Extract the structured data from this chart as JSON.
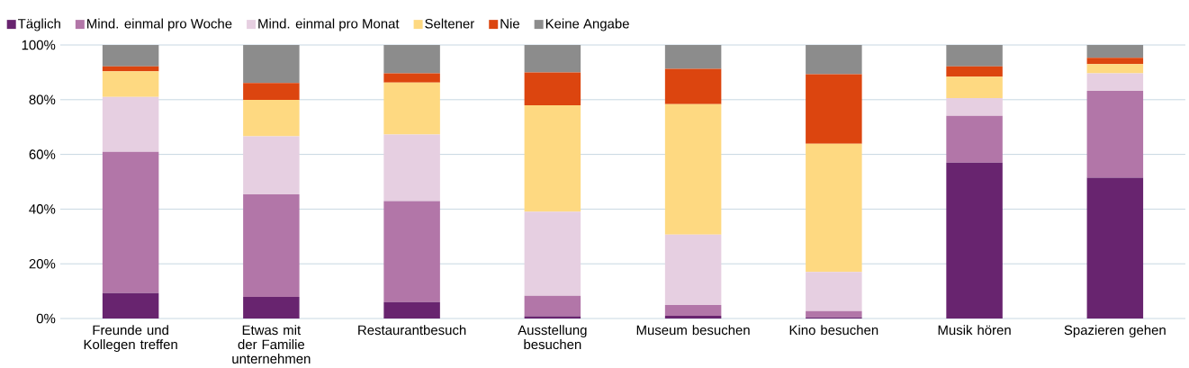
{
  "chart_data": {
    "type": "bar",
    "stacked": true,
    "grid": "y",
    "legend": "top",
    "categories": [
      "Freunde und Kollegen treffen",
      "Etwas mit der Familie unternehmen",
      "Restaurantbesuch",
      "Ausstellung besuchen",
      "Museum besuchen",
      "Kino besuchen",
      "Musik hören",
      "Spazieren gehen"
    ],
    "series": [
      {
        "name": "Täglich",
        "color": "#68246f",
        "values": [
          9.3,
          7.9,
          6.0,
          0.8,
          1.0,
          0.4,
          57.0,
          51.5
        ]
      },
      {
        "name": "Mind. einmal pro Woche",
        "color": "#b276a8",
        "values": [
          51.6,
          37.5,
          36.9,
          7.5,
          3.9,
          2.3,
          17.1,
          31.7
        ]
      },
      {
        "name": "Mind. einmal pro Monat",
        "color": "#e6cfe1",
        "values": [
          20.1,
          21.2,
          24.4,
          30.8,
          25.8,
          14.3,
          6.5,
          6.4
        ]
      },
      {
        "name": "Seltener",
        "color": "#fed981",
        "values": [
          9.4,
          13.3,
          19.0,
          38.9,
          47.7,
          46.9,
          7.8,
          3.4
        ]
      },
      {
        "name": "Nie",
        "color": "#dc450f",
        "values": [
          1.8,
          6.2,
          3.3,
          12.0,
          12.9,
          25.4,
          3.8,
          2.3
        ]
      },
      {
        "name": "Keine Angabe",
        "color": "#8c8c8c",
        "values": [
          7.8,
          13.9,
          10.4,
          10.0,
          8.7,
          10.7,
          7.8,
          4.7
        ]
      }
    ],
    "ylim": [
      0,
      100
    ],
    "yticks": [
      {
        "value": 0,
        "label": "0%"
      },
      {
        "value": 20,
        "label": "20%"
      },
      {
        "value": 40,
        "label": "40%"
      },
      {
        "value": 60,
        "label": "60%"
      },
      {
        "value": 80,
        "label": "80%"
      },
      {
        "value": 100,
        "label": "100%"
      }
    ]
  }
}
